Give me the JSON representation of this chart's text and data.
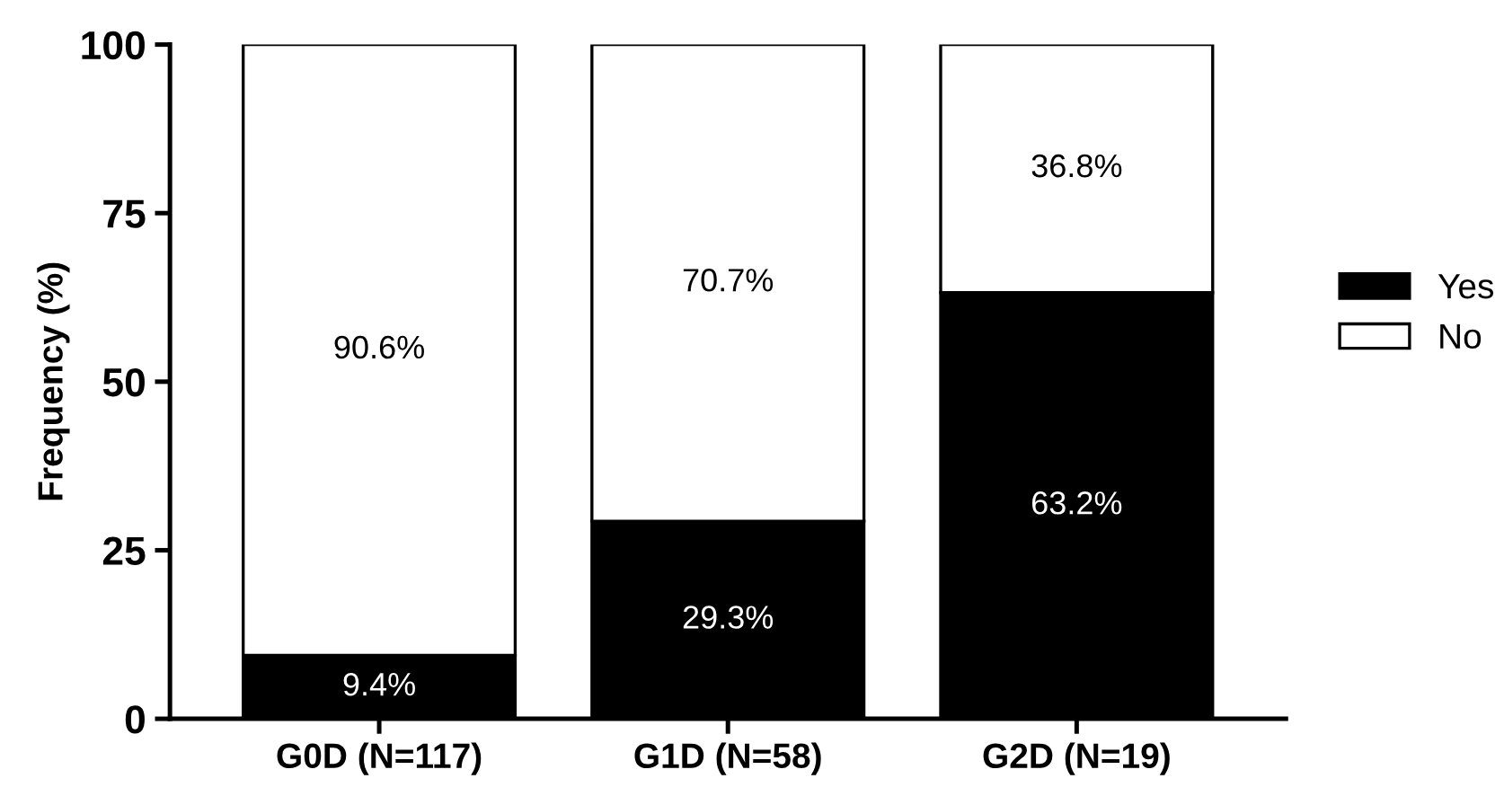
{
  "chart_data": {
    "type": "bar",
    "stacked": true,
    "ylabel": "Frequency (%)",
    "categories": [
      "G0D (N=117)",
      "G1D (N=58)",
      "G2D (N=19)"
    ],
    "series": [
      {
        "name": "Yes",
        "color": "#000000",
        "values": [
          9.4,
          29.3,
          63.2
        ],
        "value_labels": [
          "9.4%",
          "29.3%",
          "63.2%"
        ]
      },
      {
        "name": "No",
        "color": "#ffffff",
        "values": [
          90.6,
          70.7,
          36.8
        ],
        "value_labels": [
          "90.6%",
          "70.7%",
          "36.8%"
        ]
      }
    ],
    "ylim": [
      0,
      100
    ],
    "yticks": [
      0,
      25,
      50,
      75,
      100
    ],
    "grid": false,
    "legend": "right"
  }
}
